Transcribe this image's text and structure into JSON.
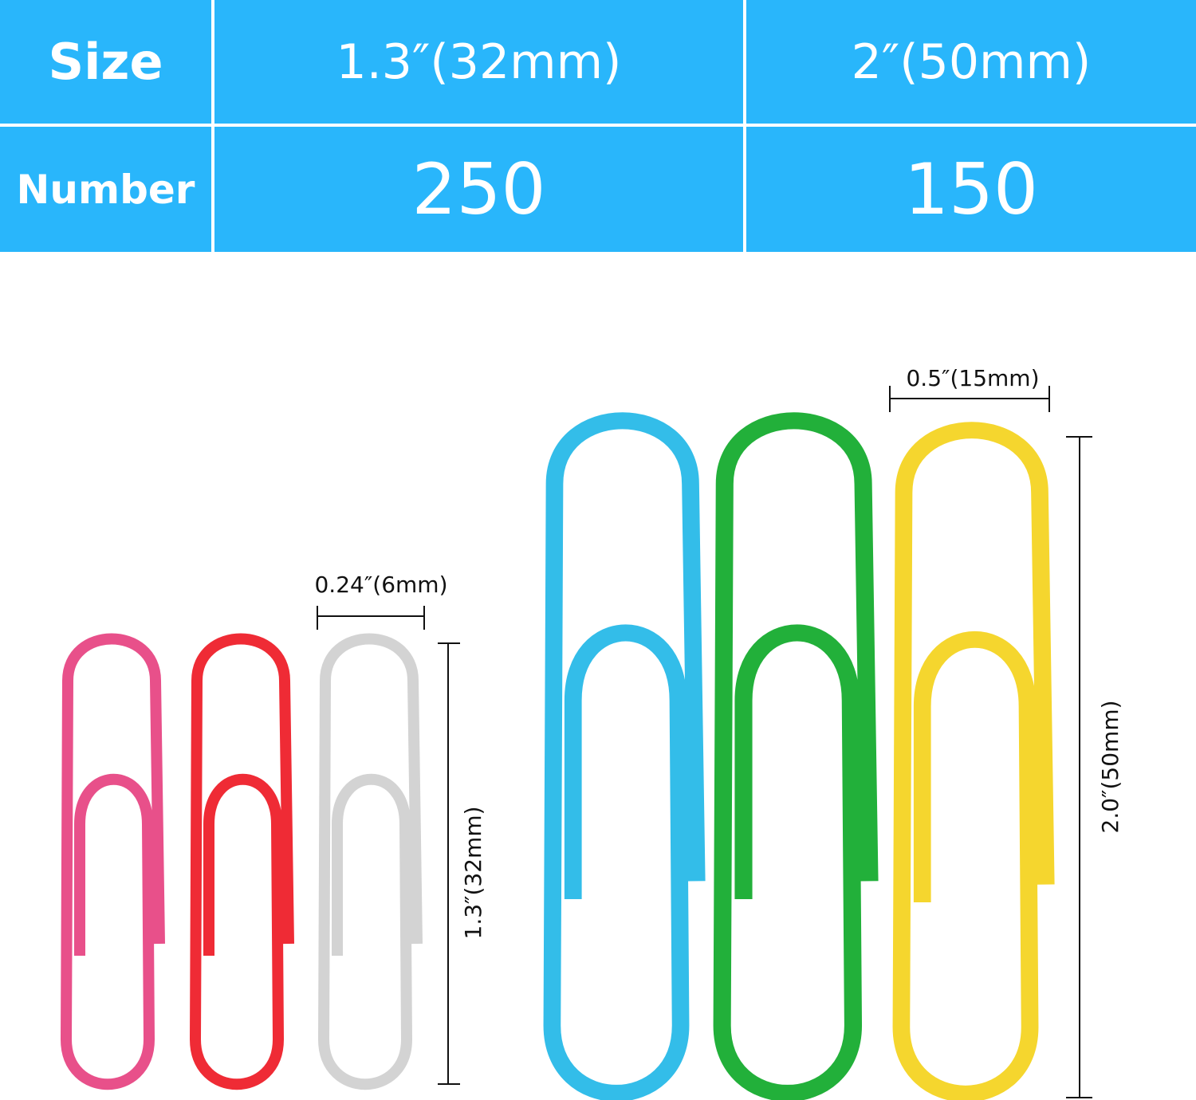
{
  "table": {
    "headers": {
      "size": "Size",
      "number": "Number"
    },
    "columns": [
      {
        "size": "1.3″(32mm)",
        "number": "250"
      },
      {
        "size": "2″(50mm)",
        "number": "150"
      }
    ]
  },
  "dimensions": {
    "small_width": "0.24″(6mm)",
    "small_length": "1.3″(32mm)",
    "large_width": "0.5″(15mm)",
    "large_length": "2.0″(50mm)"
  },
  "colors": {
    "table_bg": "#29b6fb",
    "small_clips": [
      "#e8508a",
      "#ef2b35",
      "#d3d3d3"
    ],
    "large_clips": [
      "#33bde9",
      "#22b03a",
      "#f5d62e"
    ]
  }
}
